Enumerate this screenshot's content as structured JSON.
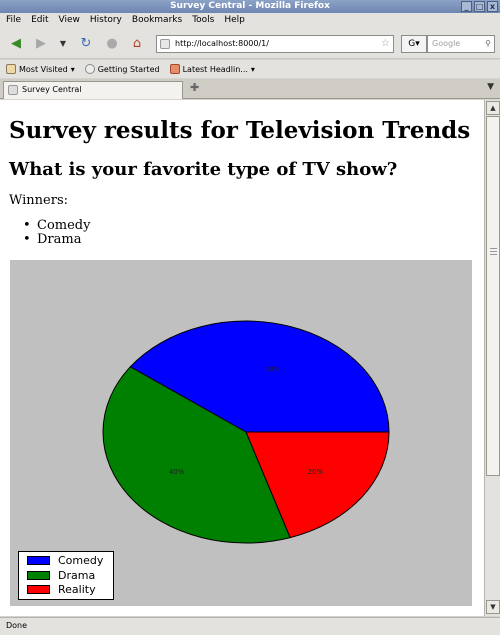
{
  "window": {
    "title": "Survey Central - Mozilla Firefox"
  },
  "menu": [
    "File",
    "Edit",
    "View",
    "History",
    "Bookmarks",
    "Tools",
    "Help"
  ],
  "nav": {
    "url": "http://localhost:8000/1/",
    "search_placeholder": "Google"
  },
  "bookmarks": [
    "Most Visited",
    "Getting Started",
    "Latest Headlin..."
  ],
  "tab": {
    "label": "Survey Central"
  },
  "page": {
    "heading": "Survey results for Television Trends",
    "question": "What is your favorite type of TV show?",
    "winners_label": "Winners:",
    "winners": [
      "Comedy",
      "Drama"
    ]
  },
  "chart_data": {
    "type": "pie",
    "labels": [
      "Comedy",
      "Drama",
      "Reality"
    ],
    "values": [
      40,
      40,
      20
    ],
    "slice_labels": [
      "40%",
      "40%",
      "20%"
    ],
    "colors": [
      "#0000ff",
      "#008000",
      "#ff0000"
    ],
    "legend_placement": "bottom-left"
  },
  "status": {
    "text": "Done"
  }
}
